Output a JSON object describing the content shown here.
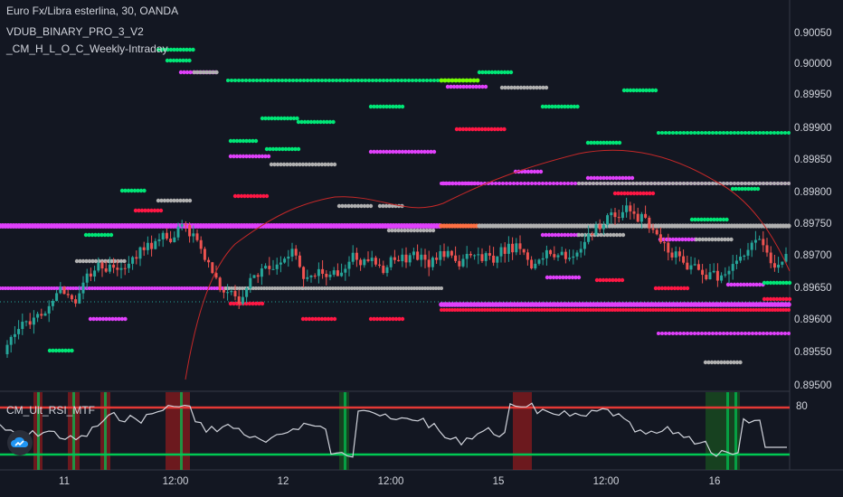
{
  "header": {
    "symbol_line": "Euro Fx/Libra esterlina, 30, OANDA",
    "indicator_1": "VDUB_BINARY_PRO_3_V2",
    "indicator_2": "_CM_H_L_O_C_Weekly-Intraday"
  },
  "price_axis": {
    "labels": [
      "0.90050",
      "0.90000",
      "0.89950",
      "0.89900",
      "0.89850",
      "0.89800",
      "0.89750",
      "0.89700",
      "0.89650",
      "0.89600",
      "0.89550",
      "0.89500"
    ]
  },
  "time_axis": {
    "labels": [
      "11",
      "12:00",
      "12",
      "12:00",
      "15",
      "12:00",
      "16"
    ]
  },
  "rsi_panel": {
    "name": "CM_Ult_RSI_MTF",
    "level_label": "80"
  },
  "colors": {
    "background": "#131722",
    "bull_candle": "#26a69a",
    "bear_candle": "#ef5350",
    "magenta": "#e040fb",
    "green_dots": "#00e676",
    "red_dots": "#ff1744",
    "gray_dots": "#b0b0b0",
    "rsi_line": "#d1d4dc"
  },
  "icons": {
    "logo": "tradingview-cloud-icon"
  }
}
